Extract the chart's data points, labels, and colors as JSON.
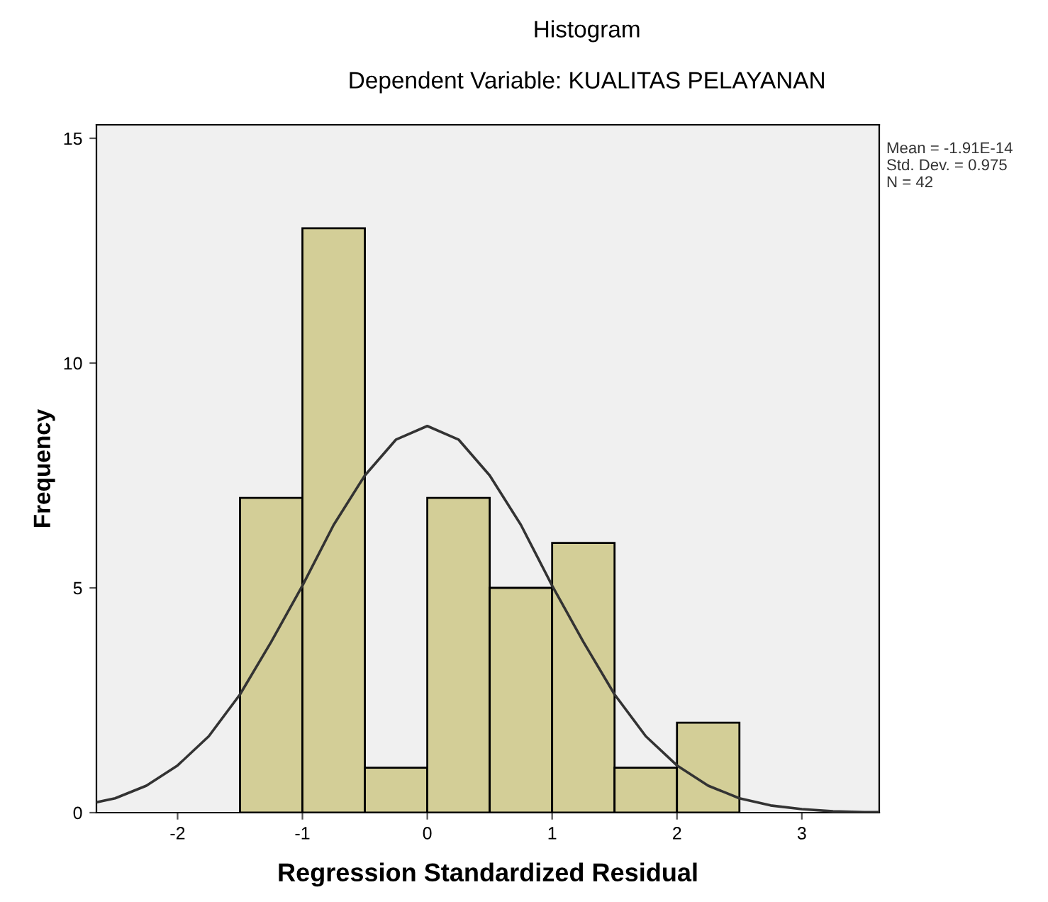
{
  "chart_data": {
    "type": "histogram",
    "title": "Histogram",
    "subtitle": "Dependent Variable: KUALITAS PELAYANAN",
    "xlabel": "Regression Standardized Residual",
    "ylabel": "Frequency",
    "series": [
      {
        "type": "histogram",
        "color": "#d3ce97",
        "bins": [
          -1.5,
          -1.0,
          -0.5,
          0.0,
          0.5,
          1.0,
          1.5,
          2.0,
          2.5
        ],
        "values": [
          7,
          13,
          1,
          7,
          5,
          6,
          1,
          2
        ]
      },
      {
        "type": "line",
        "color": "#333333",
        "x": [
          -2.65,
          -2.5,
          -2.25,
          -2.0,
          -1.75,
          -1.5,
          -1.25,
          -1.0,
          -0.75,
          -0.5,
          -0.25,
          0.0,
          0.25,
          0.5,
          0.75,
          1.0,
          1.25,
          1.5,
          1.75,
          2.0,
          2.25,
          2.5,
          2.75,
          3.0,
          3.25,
          3.5,
          3.62
        ],
        "values": [
          0.23,
          0.32,
          0.6,
          1.05,
          1.7,
          2.63,
          3.8,
          5.05,
          6.4,
          7.5,
          8.3,
          8.6,
          8.3,
          7.5,
          6.4,
          5.05,
          3.8,
          2.63,
          1.7,
          1.05,
          0.6,
          0.32,
          0.16,
          0.08,
          0.03,
          0.01,
          0.01
        ]
      }
    ],
    "xlim": [
      -2.65,
      3.62
    ],
    "ylim": [
      0,
      15.3
    ],
    "xticks": [
      -2,
      -1,
      0,
      1,
      2,
      3
    ],
    "yticks": [
      0,
      5,
      10,
      15
    ],
    "grid": false,
    "legend": false,
    "annotations": [
      "Mean = -1.91E-14\nStd. Dev. = 0.975\nN = 42"
    ]
  }
}
